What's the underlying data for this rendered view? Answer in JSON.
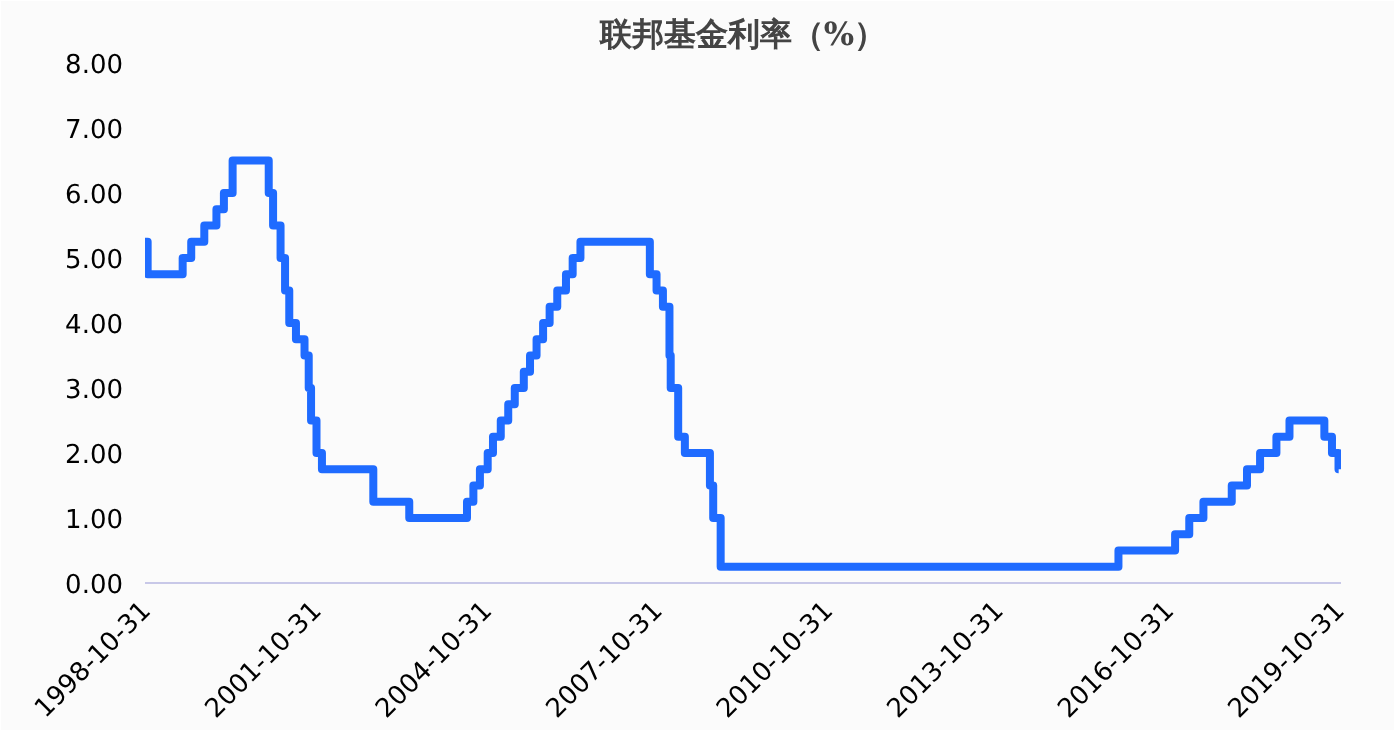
{
  "chart_data": {
    "type": "step",
    "title": "联邦基金利率（%）",
    "x": [
      "1998-10-31",
      "1998-11-17",
      "1999-06-30",
      "1999-08-24",
      "1999-11-16",
      "2000-02-02",
      "2000-03-21",
      "2000-05-16",
      "2001-01-03",
      "2001-01-31",
      "2001-03-20",
      "2001-04-18",
      "2001-05-15",
      "2001-06-27",
      "2001-08-21",
      "2001-09-17",
      "2001-10-02",
      "2001-11-06",
      "2001-12-11",
      "2002-11-06",
      "2003-06-25",
      "2004-06-30",
      "2004-08-10",
      "2004-09-21",
      "2004-11-10",
      "2004-12-14",
      "2005-02-02",
      "2005-03-22",
      "2005-05-03",
      "2005-06-30",
      "2005-08-09",
      "2005-09-20",
      "2005-11-01",
      "2005-12-13",
      "2006-01-31",
      "2006-03-28",
      "2006-05-10",
      "2006-06-29",
      "2007-09-18",
      "2007-10-31",
      "2007-12-11",
      "2008-01-22",
      "2008-01-30",
      "2008-03-18",
      "2008-04-30",
      "2008-10-08",
      "2008-10-29",
      "2008-12-16",
      "2015-12-16",
      "2016-12-14",
      "2017-03-15",
      "2017-06-14",
      "2017-12-13",
      "2018-03-21",
      "2018-06-13",
      "2018-09-26",
      "2018-12-19",
      "2019-07-31",
      "2019-09-18",
      "2019-10-30",
      "2019-10-31"
    ],
    "series": [
      {
        "color": "#1f6bff",
        "values": [
          5.25,
          4.75,
          5.0,
          5.25,
          5.5,
          5.75,
          6.0,
          6.5,
          6.0,
          5.5,
          5.0,
          4.5,
          4.0,
          3.75,
          3.5,
          3.0,
          2.5,
          2.0,
          1.75,
          1.25,
          1.0,
          1.25,
          1.5,
          1.75,
          2.0,
          2.25,
          2.5,
          2.75,
          3.0,
          3.25,
          3.5,
          3.75,
          4.0,
          4.25,
          4.5,
          4.75,
          5.0,
          5.25,
          4.75,
          4.5,
          4.25,
          3.5,
          3.0,
          2.25,
          2.0,
          1.5,
          1.0,
          0.25,
          0.5,
          0.75,
          1.0,
          1.25,
          1.5,
          1.75,
          2.0,
          2.25,
          2.5,
          2.25,
          2.0,
          1.75,
          1.75
        ]
      }
    ],
    "xlim": [
      "1998-10-31",
      "2019-11-15"
    ],
    "xticks": [
      "1998-10-31",
      "2001-10-31",
      "2004-10-31",
      "2007-10-31",
      "2010-10-31",
      "2013-10-31",
      "2016-10-31",
      "2019-10-31"
    ],
    "ylim": [
      0,
      8
    ],
    "yticks": [
      {
        "value": 0,
        "label": "0.00"
      },
      {
        "value": 1,
        "label": "1.00"
      },
      {
        "value": 2,
        "label": "2.00"
      },
      {
        "value": 3,
        "label": "3.00"
      },
      {
        "value": 4,
        "label": "4.00"
      },
      {
        "value": 5,
        "label": "5.00"
      },
      {
        "value": 6,
        "label": "6.00"
      },
      {
        "value": 7,
        "label": "7.00"
      },
      {
        "value": 8,
        "label": "8.00"
      }
    ],
    "grid": false
  }
}
